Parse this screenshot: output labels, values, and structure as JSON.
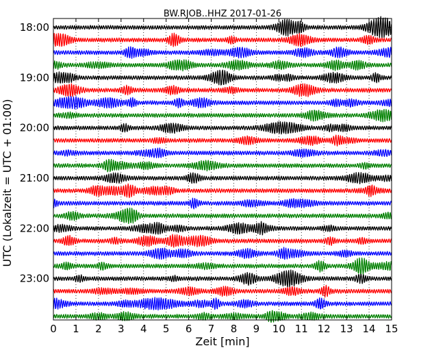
{
  "chart_data": {
    "type": "line",
    "title": "BW.RJOB..HHZ 2017-01-26",
    "xlabel": "Zeit  [min]",
    "ylabel": "UTC (Lokalzeit = UTC + 01:00)",
    "xlim": [
      0,
      15
    ],
    "x_ticks": [
      "0",
      "1",
      "2",
      "3",
      "4",
      "5",
      "6",
      "7",
      "8",
      "9",
      "10",
      "11",
      "12",
      "13",
      "14",
      "15"
    ],
    "y_ticks": [
      "18:00",
      "19:00",
      "20:00",
      "21:00",
      "22:00",
      "23:00"
    ],
    "grid": "vertical dotted lines at each minute",
    "legend": "none",
    "trace_colors": [
      "#000000",
      "#ff0000",
      "#0000ff",
      "#008000"
    ],
    "trace_interval_min": 15,
    "trace_count": 24,
    "first_trace": "18:00"
  }
}
